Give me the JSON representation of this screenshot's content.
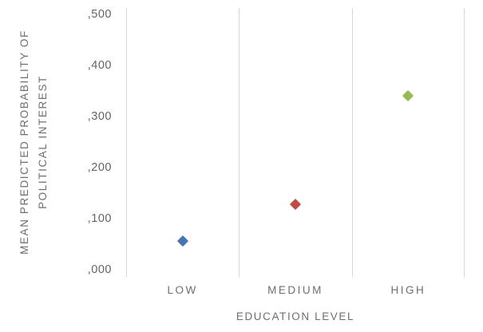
{
  "chart_data": {
    "type": "scatter",
    "marker": "diamond",
    "title": "",
    "xlabel": "EDUCATION LEVEL",
    "ylabel": "MEAN PREDICTED PROBABILITY OF POLITICAL INTEREST",
    "ylabel_line1": "MEAN PREDICTED PROBABILITY OF",
    "ylabel_line2": "POLITICAL INTEREST",
    "categories": [
      "LOW",
      "MEDIUM",
      "HIGH"
    ],
    "values": [
      0.056,
      0.128,
      0.34
    ],
    "point_colors": [
      "#4675b2",
      "#be4b48",
      "#98b954"
    ],
    "ylim": [
      0,
      0.5
    ],
    "yticks": [
      0,
      0.1,
      0.2,
      0.3,
      0.4,
      0.5
    ],
    "ytick_labels": [
      ",000",
      ",100",
      ",200",
      ",300",
      ",400",
      ",500"
    ],
    "grid": "vertical lines at category boundaries only, no horizontal gridlines, no axis lines",
    "gridline_color": "#d6d6d6",
    "text_color": "#6e6e6e",
    "background": "#ffffff",
    "legend": "none"
  }
}
